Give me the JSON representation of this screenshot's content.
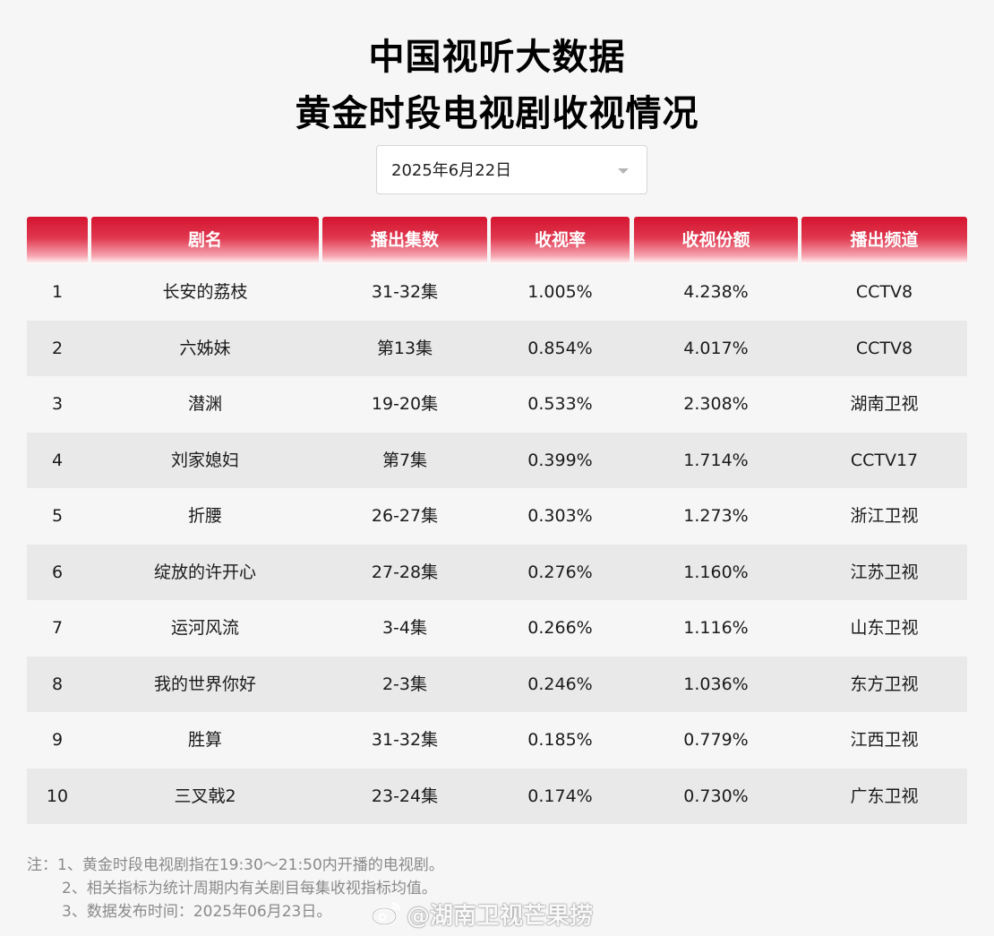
{
  "title_line1": "中国视听大数据",
  "title_line2": "黄金时段电视剧收视情况",
  "date_selector": {
    "value": "2025年6月22日",
    "icon": "chevron-down-icon"
  },
  "columns": [
    "",
    "剧名",
    "播出集数",
    "收视率",
    "收视份额",
    "播出频道"
  ],
  "rows": [
    {
      "rank": "1",
      "name": "长安的荔枝",
      "episodes": "31-32集",
      "rating": "1.005%",
      "share": "4.238%",
      "channel": "CCTV8"
    },
    {
      "rank": "2",
      "name": "六姊妹",
      "episodes": "第13集",
      "rating": "0.854%",
      "share": "4.017%",
      "channel": "CCTV8"
    },
    {
      "rank": "3",
      "name": "潜渊",
      "episodes": "19-20集",
      "rating": "0.533%",
      "share": "2.308%",
      "channel": "湖南卫视"
    },
    {
      "rank": "4",
      "name": "刘家媳妇",
      "episodes": "第7集",
      "rating": "0.399%",
      "share": "1.714%",
      "channel": "CCTV17"
    },
    {
      "rank": "5",
      "name": "折腰",
      "episodes": "26-27集",
      "rating": "0.303%",
      "share": "1.273%",
      "channel": "浙江卫视"
    },
    {
      "rank": "6",
      "name": "绽放的许开心",
      "episodes": "27-28集",
      "rating": "0.276%",
      "share": "1.160%",
      "channel": "江苏卫视"
    },
    {
      "rank": "7",
      "name": "运河风流",
      "episodes": "3-4集",
      "rating": "0.266%",
      "share": "1.116%",
      "channel": "山东卫视"
    },
    {
      "rank": "8",
      "name": "我的世界你好",
      "episodes": "2-3集",
      "rating": "0.246%",
      "share": "1.036%",
      "channel": "东方卫视"
    },
    {
      "rank": "9",
      "name": "胜算",
      "episodes": "31-32集",
      "rating": "0.185%",
      "share": "0.779%",
      "channel": "江西卫视"
    },
    {
      "rank": "10",
      "name": "三叉戟2",
      "episodes": "23-24集",
      "rating": "0.174%",
      "share": "0.730%",
      "channel": "广东卫视"
    }
  ],
  "notes": [
    "注：1、黄金时段电视剧指在19:30～21:50内开播的电视剧。",
    "2、相关指标为统计周期内有关剧目每集收视指标均值。",
    "3、数据发布时间：2025年06月23日。"
  ],
  "watermark": "@湖南卫视芒果捞",
  "colors": {
    "header_red": "#d5142f",
    "row_stripe": "#e9e9e9",
    "background": "#f6f6f6"
  }
}
